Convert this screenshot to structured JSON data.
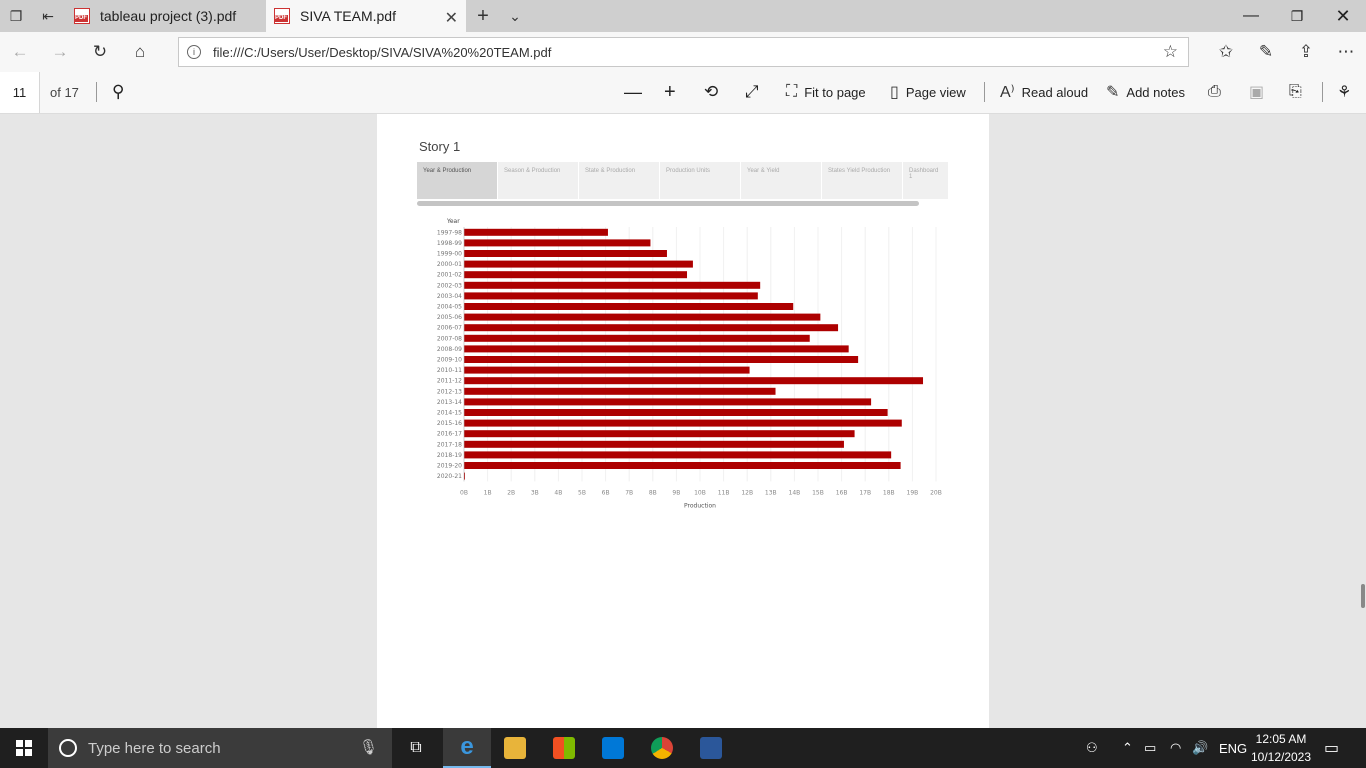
{
  "tabs": [
    {
      "title": "tableau project (3).pdf",
      "active": false
    },
    {
      "title": "SIVA TEAM.pdf",
      "active": true
    }
  ],
  "address": {
    "url": "file:///C:/Users/User/Desktop/SIVA/SIVA%20%20TEAM.pdf"
  },
  "pdf_toolbar": {
    "page_number": "11",
    "page_count": "of 17",
    "fit_to_page": "Fit to page",
    "page_view": "Page view",
    "read_aloud": "Read aloud",
    "add_notes": "Add notes"
  },
  "story": {
    "title": "Story 1",
    "tabs": [
      "Year & Production",
      "Season & Production",
      "State & Production",
      "Production Units",
      "Year & Yield",
      "States Yield Production",
      "Dashboard 1"
    ],
    "active_tab": 0
  },
  "chart_data": {
    "type": "bar",
    "orientation": "horizontal",
    "y_header": "Year",
    "xlabel": "Production",
    "categories": [
      "1997-98",
      "1998-99",
      "1999-00",
      "2000-01",
      "2001-02",
      "2002-03",
      "2003-04",
      "2004-05",
      "2005-06",
      "2006-07",
      "2007-08",
      "2008-09",
      "2009-10",
      "2010-11",
      "2011-12",
      "2012-13",
      "2013-14",
      "2014-15",
      "2015-16",
      "2016-17",
      "2017-18",
      "2018-19",
      "2019-20",
      "2020-21"
    ],
    "values": [
      61,
      79,
      86,
      97,
      94.5,
      125.5,
      124.5,
      139.5,
      151,
      158.5,
      146.5,
      163,
      167,
      121,
      194.5,
      132,
      172.5,
      179.5,
      185.5,
      165.5,
      161,
      181,
      185,
      0.1
    ],
    "xticks": [
      "0B",
      "1B",
      "2B",
      "3B",
      "4B",
      "5B",
      "6B",
      "7B",
      "8B",
      "9B",
      "10B",
      "11B",
      "12B",
      "13B",
      "14B",
      "15B",
      "16B",
      "17B",
      "18B",
      "19B",
      "20B"
    ],
    "xlim": [
      0,
      200
    ],
    "bar_color": "#ad0000",
    "grid": "vertical"
  },
  "taskbar": {
    "search_placeholder": "Type here to search",
    "language": "ENG",
    "time": "12:05 AM",
    "date": "10/12/2023"
  }
}
